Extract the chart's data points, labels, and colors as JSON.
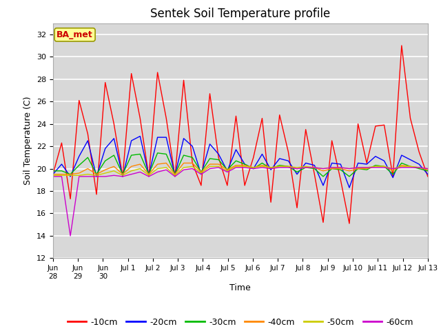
{
  "title": "Sentek Soil Temperature profile",
  "xlabel": "Time",
  "ylabel": "Soil Temperature (C)",
  "ylim": [
    12,
    33
  ],
  "yticks": [
    12,
    14,
    16,
    18,
    20,
    22,
    24,
    26,
    28,
    30,
    32
  ],
  "bg_color": "#d8d8d8",
  "fig_color": "#ffffff",
  "annotation_text": "BA_met",
  "annotation_color": "#cc0000",
  "annotation_bg": "#ffff99",
  "annotation_edge": "#999900",
  "series_colors": [
    "#ff0000",
    "#0000ff",
    "#00bb00",
    "#ff8800",
    "#cccc00",
    "#cc00cc"
  ],
  "series_labels": [
    "-10cm",
    "-20cm",
    "-30cm",
    "-40cm",
    "-50cm",
    "-60cm"
  ],
  "x_tick_labels": [
    "Jun\n28",
    "Jun\n29",
    "Jun\n30",
    "Jul 1",
    "Jul 2",
    "Jul 3",
    "Jul 4",
    "Jul 5",
    "Jul 6",
    "Jul 7",
    "Jul 8",
    "Jul 9",
    "Jul 10",
    "Jul 11",
    "Jul 12",
    "Jul 13"
  ],
  "n_ticks": 16,
  "depth_10cm": [
    19.5,
    22.3,
    17.3,
    26.1,
    23.1,
    17.7,
    27.7,
    24.0,
    19.3,
    28.5,
    24.5,
    19.3,
    28.6,
    24.5,
    19.3,
    27.9,
    20.5,
    18.5,
    26.7,
    21.0,
    18.5,
    24.7,
    18.5,
    21.0,
    24.5,
    17.0,
    24.8,
    21.5,
    16.5,
    23.5,
    19.5,
    15.2,
    22.5,
    19.0,
    15.1,
    24.0,
    20.5,
    23.8,
    23.9,
    19.3,
    31.0,
    24.5,
    21.5,
    19.3
  ],
  "depth_20cm": [
    19.5,
    20.4,
    19.3,
    21.1,
    22.5,
    19.3,
    21.8,
    22.7,
    19.3,
    22.5,
    22.9,
    19.4,
    22.8,
    22.8,
    19.4,
    22.7,
    22.0,
    19.5,
    22.2,
    21.3,
    19.8,
    21.7,
    20.4,
    20.0,
    21.3,
    19.9,
    20.9,
    20.7,
    19.5,
    20.5,
    20.3,
    18.5,
    20.5,
    20.4,
    18.3,
    20.5,
    20.4,
    21.1,
    20.7,
    19.2,
    21.2,
    20.8,
    20.4,
    19.5
  ],
  "depth_30cm": [
    19.8,
    19.8,
    19.5,
    20.3,
    21.0,
    19.5,
    20.7,
    21.2,
    19.5,
    21.2,
    21.3,
    19.5,
    21.4,
    21.3,
    19.5,
    21.2,
    21.0,
    19.7,
    20.9,
    20.8,
    19.9,
    20.7,
    20.4,
    20.0,
    20.5,
    20.0,
    20.3,
    20.2,
    19.7,
    20.1,
    20.0,
    19.3,
    20.0,
    19.9,
    19.3,
    20.0,
    19.9,
    20.3,
    20.2,
    19.5,
    20.5,
    20.2,
    20.0,
    19.8
  ],
  "depth_40cm": [
    19.5,
    19.5,
    19.5,
    19.6,
    20.0,
    19.5,
    19.9,
    20.2,
    19.5,
    20.2,
    20.4,
    19.5,
    20.4,
    20.5,
    19.5,
    20.5,
    20.5,
    19.7,
    20.4,
    20.4,
    19.9,
    20.3,
    20.3,
    20.1,
    20.3,
    20.1,
    20.2,
    20.2,
    20.0,
    20.1,
    20.1,
    19.8,
    20.0,
    20.0,
    19.8,
    20.0,
    20.0,
    20.2,
    20.2,
    19.8,
    20.3,
    20.2,
    20.1,
    19.9
  ],
  "depth_50cm": [
    19.4,
    19.4,
    19.4,
    19.4,
    19.5,
    19.4,
    19.6,
    19.8,
    19.4,
    19.8,
    20.0,
    19.4,
    20.0,
    20.1,
    19.4,
    20.1,
    20.2,
    19.6,
    20.2,
    20.2,
    19.8,
    20.2,
    20.2,
    20.1,
    20.2,
    20.1,
    20.2,
    20.2,
    20.1,
    20.2,
    20.1,
    20.0,
    20.1,
    20.1,
    20.0,
    20.1,
    20.1,
    20.2,
    20.2,
    20.0,
    20.2,
    20.2,
    20.1,
    20.0
  ],
  "depth_60cm": [
    19.3,
    19.3,
    14.0,
    19.3,
    19.3,
    19.3,
    19.3,
    19.4,
    19.3,
    19.5,
    19.7,
    19.3,
    19.7,
    19.9,
    19.3,
    19.9,
    20.0,
    19.5,
    20.0,
    20.1,
    19.7,
    20.1,
    20.1,
    20.0,
    20.1,
    20.0,
    20.1,
    20.1,
    20.0,
    20.1,
    20.1,
    20.0,
    20.1,
    20.1,
    20.0,
    20.1,
    20.1,
    20.1,
    20.1,
    20.0,
    20.1,
    20.1,
    20.1,
    20.0
  ]
}
